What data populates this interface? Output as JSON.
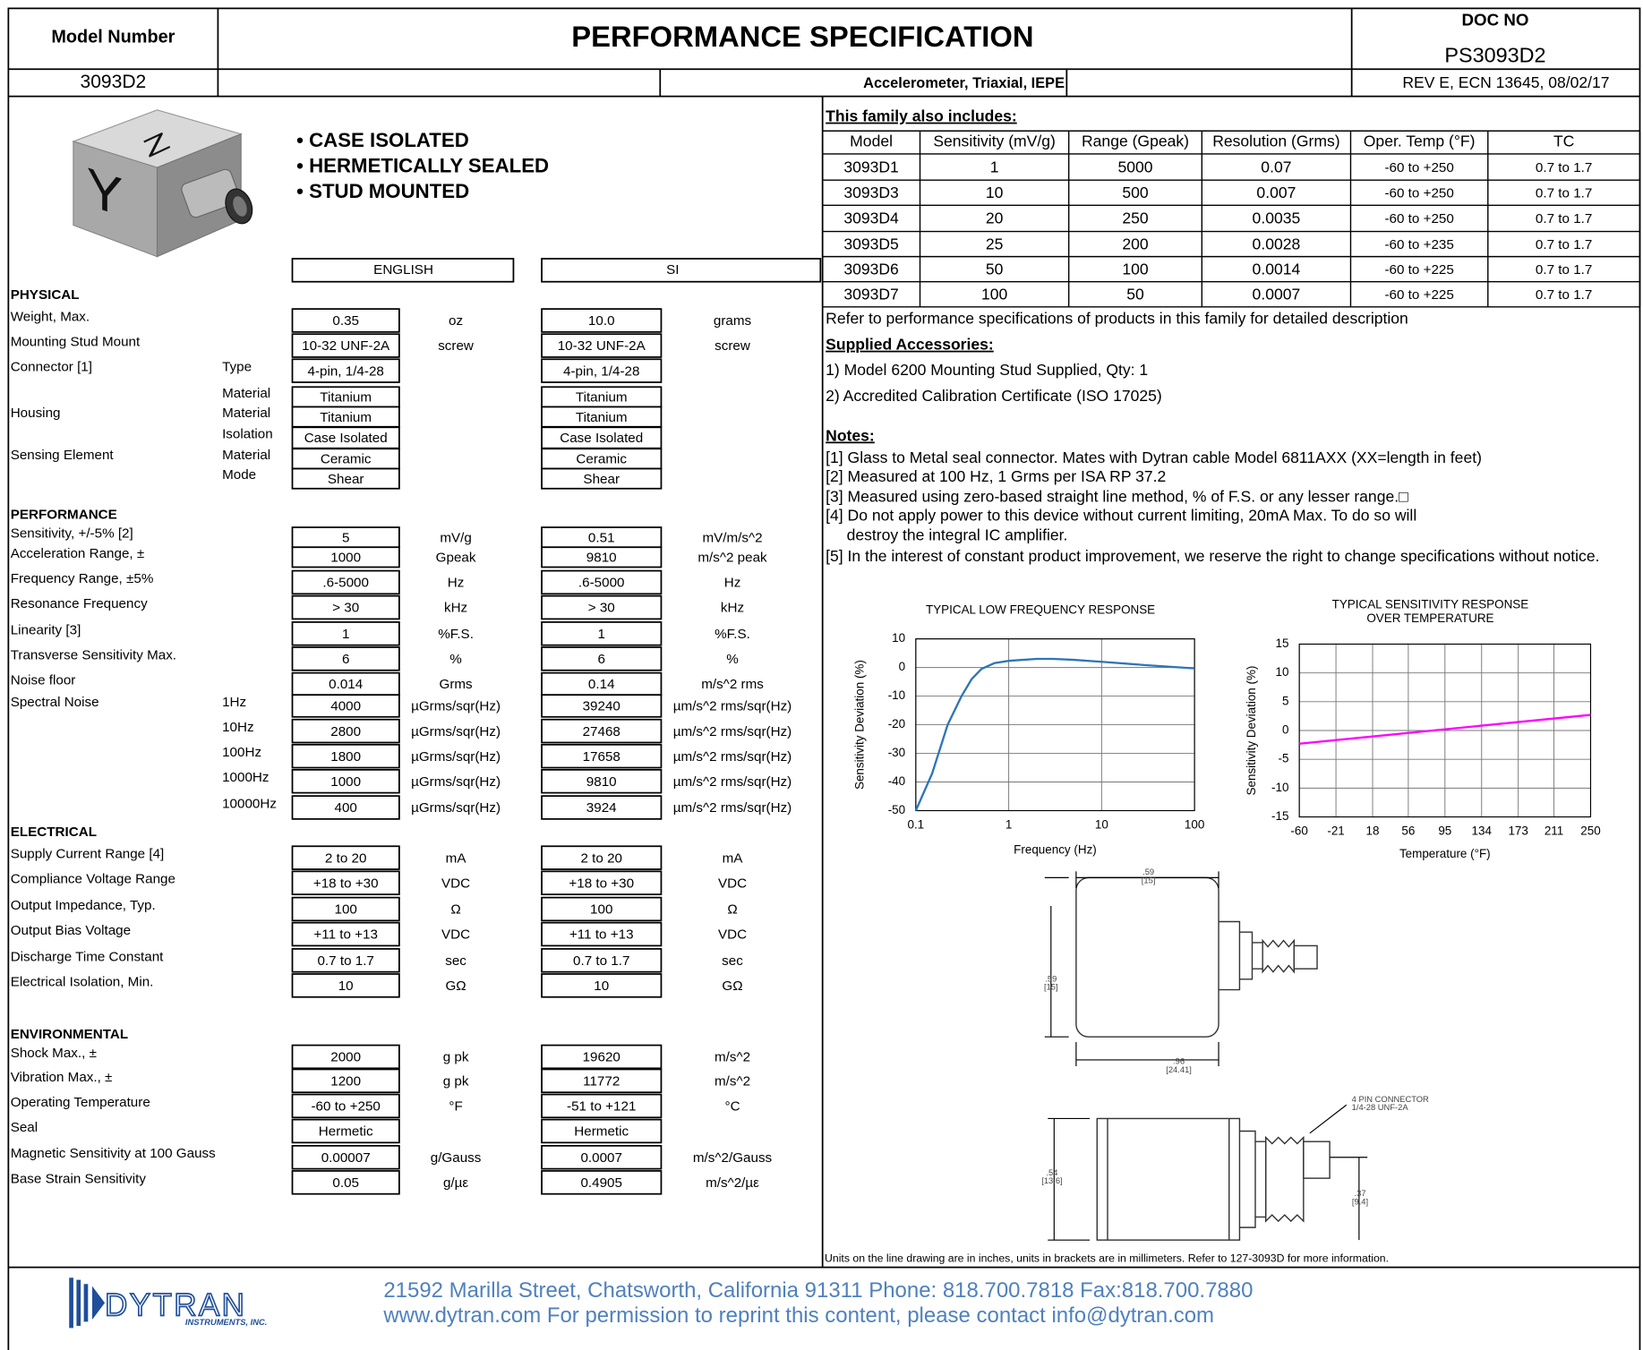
{
  "header": {
    "model_label": "Model Number",
    "title": "PERFORMANCE SPECIFICATION",
    "doc_label": "DOC NO",
    "doc_no": "PS3093D2",
    "model": "3093D2",
    "description": "Accelerometer, Triaxial, IEPE",
    "revision": "REV E, ECN 13645, 08/02/17"
  },
  "product": {
    "image_labels": [
      "Z",
      "Y"
    ],
    "features": [
      "• CASE ISOLATED",
      "• HERMETICALLY SEALED",
      "• STUD MOUNTED"
    ]
  },
  "specs": {
    "english_header": "ENGLISH",
    "si_header": "SI",
    "sections": [
      {
        "title": "PHYSICAL",
        "rows": [
          [
            "Weight, Max.",
            null,
            "0.35",
            "oz",
            "10.0",
            "grams"
          ],
          [
            "Mounting Stud Mount",
            null,
            "10-32 UNF-2A",
            "screw",
            "10-32 UNF-2A",
            "screw"
          ],
          [
            "Connector [1]",
            "Type",
            "4-pin, 1/4-28",
            null,
            "4-pin, 1/4-28",
            null
          ],
          [
            null,
            "Material",
            "Titanium",
            null,
            "Titanium",
            null
          ],
          [
            "Housing",
            "Material",
            "Titanium",
            null,
            "Titanium",
            null
          ],
          [
            null,
            "Isolation",
            "Case Isolated",
            null,
            "Case Isolated",
            null
          ],
          [
            "Sensing Element",
            "Material",
            "Ceramic",
            null,
            "Ceramic",
            null
          ],
          [
            null,
            "Mode",
            "Shear",
            null,
            "Shear",
            null
          ]
        ]
      },
      {
        "title": "PERFORMANCE",
        "rows": [
          [
            "Sensitivity, +/-5% [2]",
            null,
            "5",
            "mV/g",
            "0.51",
            "mV/m/s^2"
          ],
          [
            "Acceleration Range, ±",
            null,
            "1000",
            "Gpeak",
            "9810",
            "m/s^2 peak"
          ],
          [
            "Frequency Range, ±5%",
            null,
            ".6-5000",
            "Hz",
            ".6-5000",
            "Hz"
          ],
          [
            "Resonance Frequency",
            null,
            "> 30",
            "kHz",
            "> 30",
            "kHz"
          ],
          [
            "Linearity [3]",
            null,
            "1",
            "%F.S.",
            "1",
            "%F.S."
          ],
          [
            "Transverse Sensitivity Max.",
            null,
            "6",
            "%",
            "6",
            "%"
          ],
          [
            "Noise floor",
            null,
            "0.014",
            "Grms",
            "0.14",
            "m/s^2 rms"
          ],
          [
            "Spectral Noise",
            "1Hz",
            "4000",
            "µGrms/sqr(Hz)",
            "39240",
            "µm/s^2 rms/sqr(Hz)"
          ],
          [
            null,
            "10Hz",
            "2800",
            "µGrms/sqr(Hz)",
            "27468",
            "µm/s^2 rms/sqr(Hz)"
          ],
          [
            null,
            "100Hz",
            "1800",
            "µGrms/sqr(Hz)",
            "17658",
            "µm/s^2 rms/sqr(Hz)"
          ],
          [
            null,
            "1000Hz",
            "1000",
            "µGrms/sqr(Hz)",
            "9810",
            "µm/s^2 rms/sqr(Hz)"
          ],
          [
            null,
            "10000Hz",
            "400",
            "µGrms/sqr(Hz)",
            "3924",
            "µm/s^2 rms/sqr(Hz)"
          ]
        ]
      },
      {
        "title": "ELECTRICAL",
        "rows": [
          [
            "Supply Current Range  [4]",
            null,
            "2 to 20",
            "mA",
            "2 to 20",
            "mA"
          ],
          [
            "Compliance Voltage Range",
            null,
            "+18 to +30",
            "VDC",
            "+18 to +30",
            "VDC"
          ],
          [
            "Output Impedance, Typ.",
            null,
            "100",
            "Ω",
            "100",
            "Ω"
          ],
          [
            "Output Bias Voltage",
            null,
            "+11 to +13",
            "VDC",
            "+11 to +13",
            "VDC"
          ],
          [
            "Discharge Time Constant",
            null,
            "0.7 to 1.7",
            "sec",
            "0.7 to 1.7",
            "sec"
          ],
          [
            "Electrical Isolation, Min.",
            null,
            "10",
            "GΩ",
            "10",
            "GΩ"
          ]
        ]
      },
      {
        "title": "ENVIRONMENTAL",
        "rows": [
          [
            "Shock Max., ±",
            null,
            "2000",
            "g pk",
            "19620",
            "m/s^2"
          ],
          [
            "Vibration Max., ±",
            null,
            "1200",
            "g pk",
            "11772",
            "m/s^2"
          ],
          [
            "Operating Temperature",
            null,
            "-60 to +250",
            "°F",
            "-51 to +121",
            "°C"
          ],
          [
            "Seal",
            null,
            "Hermetic",
            null,
            "Hermetic",
            null
          ],
          [
            "Magnetic Sensitivity at 100 Gauss",
            null,
            "0.00007",
            "g/Gauss",
            "0.0007",
            "m/s^2/Gauss"
          ],
          [
            "Base Strain Sensitivity",
            null,
            "0.05",
            "g/µε",
            "0.4905",
            "m/s^2/µε"
          ]
        ]
      }
    ]
  },
  "family": {
    "title": "This family also includes:",
    "columns": [
      "Model",
      "Sensitivity (mV/g)",
      "Range (Gpeak)",
      "Resolution (Grms)",
      "Oper. Temp (°F)",
      "TC"
    ],
    "rows": [
      [
        "3093D1",
        "1",
        "5000",
        "0.07",
        "-60 to +250",
        "0.7 to 1.7"
      ],
      [
        "3093D3",
        "10",
        "500",
        "0.007",
        "-60 to +250",
        "0.7 to 1.7"
      ],
      [
        "3093D4",
        "20",
        "250",
        "0.0035",
        "-60 to +250",
        "0.7 to 1.7"
      ],
      [
        "3093D5",
        "25",
        "200",
        "0.0028",
        "-60 to +235",
        "0.7 to 1.7"
      ],
      [
        "3093D6",
        "50",
        "100",
        "0.0014",
        "-60 to +225",
        "0.7 to 1.7"
      ],
      [
        "3093D7",
        "100",
        "50",
        "0.0007",
        "-60 to +225",
        "0.7 to 1.7"
      ]
    ],
    "note": "Refer to performance specifications of products in this family for detailed description"
  },
  "accessories": {
    "title": "Supplied Accessories:",
    "items": [
      "1) Model 6200 Mounting Stud Supplied, Qty: 1",
      "2) Accredited Calibration Certificate (ISO 17025)"
    ]
  },
  "notes": {
    "title": "Notes:",
    "lines": [
      "[1] Glass to Metal seal connector. Mates with Dytran cable Model 6811AXX (XX=length in feet)",
      "[2] Measured at 100 Hz, 1 Grms per ISA RP 37.2",
      "[3] Measured using zero-based straight line method, % of F.S. or any lesser range.□",
      "[4] Do not apply power to this device without current limiting, 20mA Max. To do so will",
      "destroy the integral IC amplifier.",
      "[5] In the interest of constant product improvement, we reserve the right to change specifications without notice."
    ]
  },
  "chart_data": [
    {
      "type": "line",
      "title": [
        "TYPICAL LOW FREQUENCY RESPONSE"
      ],
      "x_label": "Frequency (Hz)",
      "y_label": "Sensitivity Deviation (%)",
      "x": [
        0.1,
        0.15,
        0.22,
        0.31,
        0.4,
        0.51,
        0.7,
        1,
        2,
        3,
        5,
        10,
        30,
        100
      ],
      "values": [
        -50,
        -37,
        -20,
        -10,
        -4,
        -0.5,
        1.5,
        2.3,
        3,
        3,
        2.7,
        2,
        0.8,
        -0.3
      ],
      "color": "#2e75b6",
      "log_x": true,
      "grid": true,
      "xlim": [
        0.1,
        100
      ],
      "xticks": [
        0.1,
        1,
        10,
        100
      ],
      "ylim": [
        -50,
        10
      ],
      "yticks": [
        -50,
        -40,
        -30,
        -20,
        -10,
        0,
        10
      ]
    },
    {
      "type": "line",
      "title": [
        "TYPICAL SENSITIVITY RESPONSE",
        "OVER TEMPERATURE"
      ],
      "x_label": "Temperature (°F)",
      "y_label": "Sensitivity Deviation (%)",
      "x": [
        -60,
        250
      ],
      "values": [
        -2.3,
        2.7
      ],
      "color": "#ff00ff",
      "log_x": false,
      "grid": true,
      "xlim": [
        -60,
        250
      ],
      "xticks": [
        -60,
        -21,
        18,
        56,
        95,
        134,
        173,
        211,
        250
      ],
      "ylim": [
        -15,
        15
      ],
      "yticks": [
        -15,
        -10,
        -5,
        0,
        5,
        10,
        15
      ]
    }
  ],
  "drawing": {
    "labels": [
      [
        ".59",
        "[15]"
      ],
      [
        ".59",
        "[15]"
      ],
      [
        ".96",
        "[24.41]"
      ],
      [
        ".54",
        "[13.6]"
      ],
      [
        ".37",
        "[9.4]"
      ],
      [
        "4 PIN CONNECTOR",
        "1/4-28 UNF-2A"
      ]
    ],
    "caption": "Units on the line drawing are in inches, units in brackets are in millimeters. Refer to 127-3093D for more information."
  },
  "footer": {
    "logo": "DYTRAN",
    "logo_sub": "INSTRUMENTS, INC.",
    "address": "21592 Marilla Street, Chatsworth, California 91311  Phone: 818.700.7818  Fax:818.700.7880",
    "web": "www.dytran.com  For permission to reprint this content, please contact info@dytran.com"
  }
}
